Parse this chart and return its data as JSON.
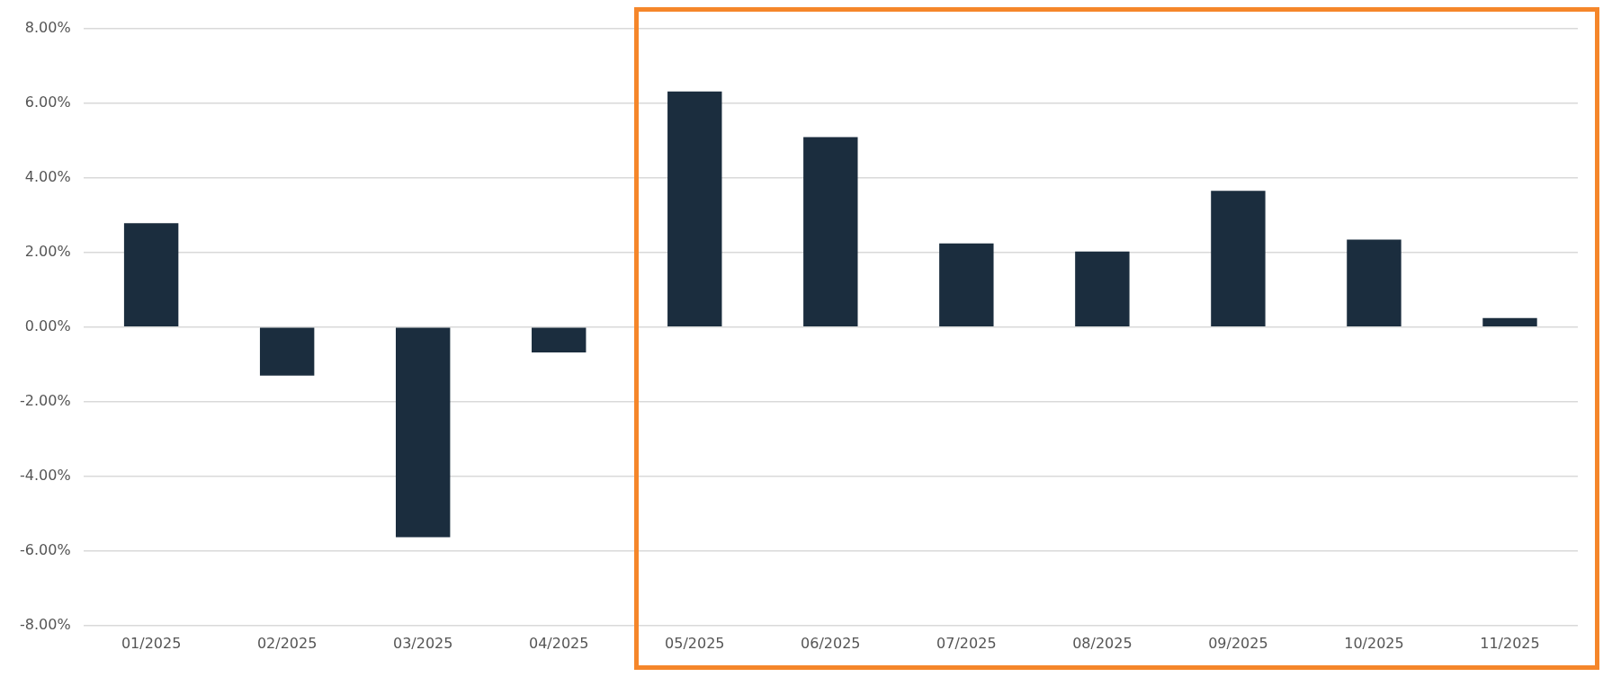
{
  "chart_data": {
    "type": "bar",
    "categories": [
      "01/2025",
      "02/2025",
      "03/2025",
      "04/2025",
      "05/2025",
      "06/2025",
      "07/2025",
      "08/2025",
      "09/2025",
      "10/2025",
      "11/2025"
    ],
    "values": [
      2.78,
      -1.3,
      -5.63,
      -0.68,
      6.31,
      5.09,
      2.24,
      2.02,
      3.65,
      2.34,
      0.24
    ],
    "color": "#1b2d3e",
    "ylim": [
      -8,
      8
    ],
    "yticks": [
      {
        "value": -8,
        "label": "-8.00%"
      },
      {
        "value": -6,
        "label": "-6.00%"
      },
      {
        "value": -4,
        "label": "-4.00%"
      },
      {
        "value": -2,
        "label": "-2.00%"
      },
      {
        "value": 0,
        "label": "0.00%"
      },
      {
        "value": 2,
        "label": "2.00%"
      },
      {
        "value": 4,
        "label": "4.00%"
      },
      {
        "value": 6,
        "label": "6.00%"
      },
      {
        "value": 8,
        "label": "8.00%"
      }
    ],
    "grid": "y",
    "legend": false
  }
}
